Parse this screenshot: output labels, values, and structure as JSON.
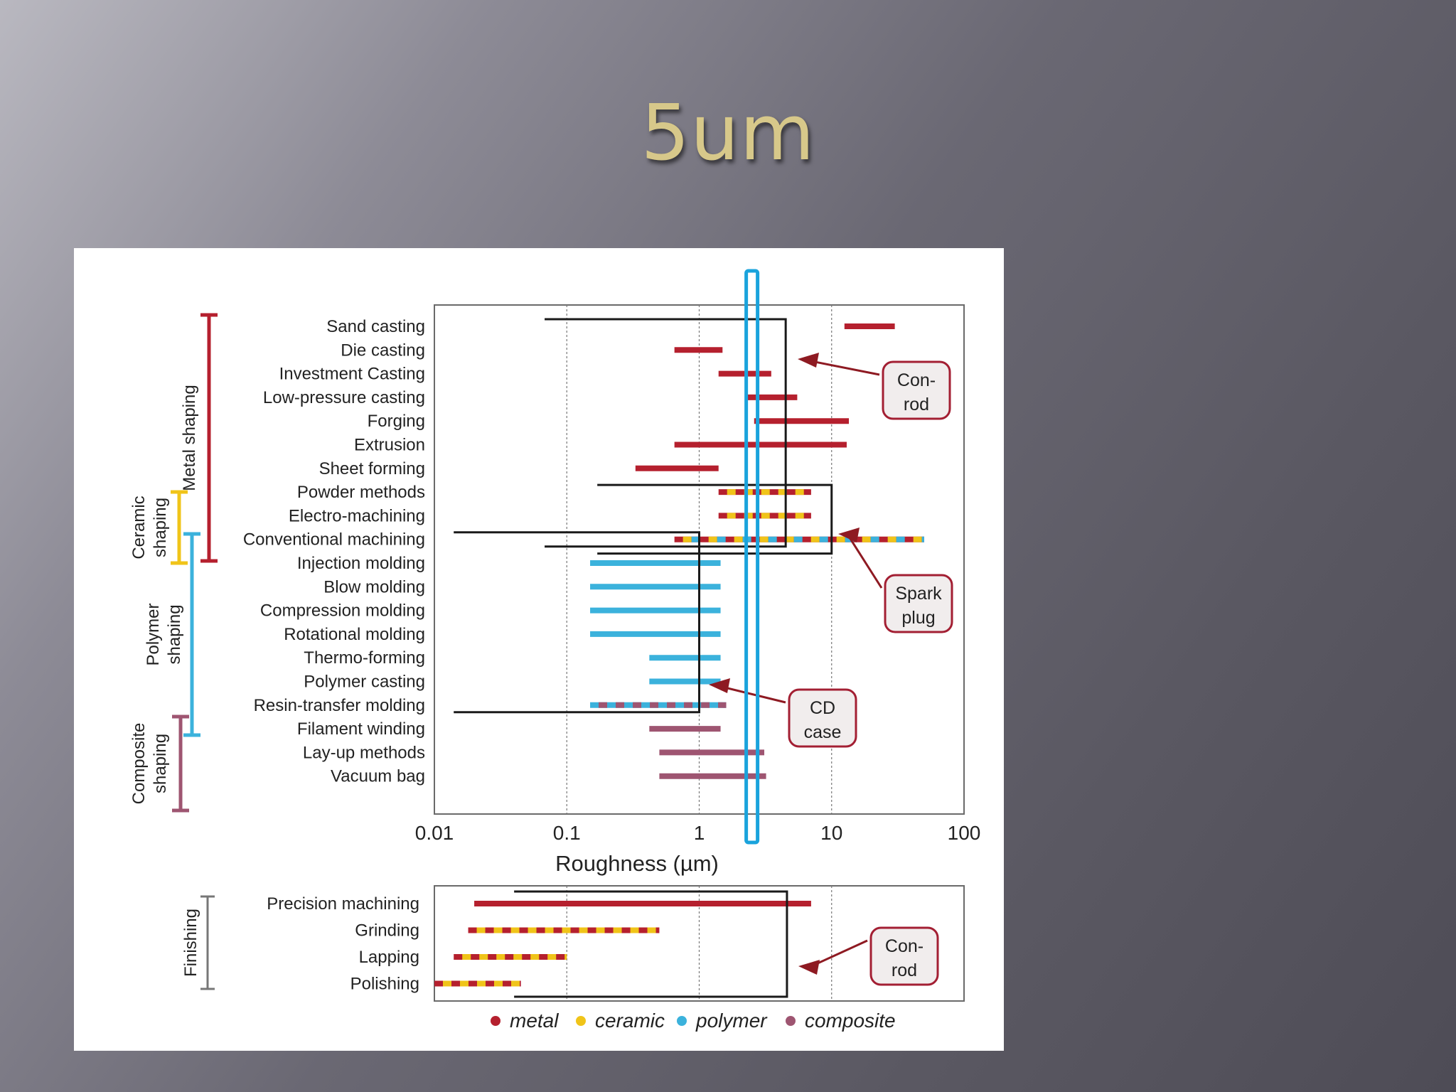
{
  "slide": {
    "title": "5um"
  },
  "colors": {
    "metal": "#b5202e",
    "ceramic": "#f0c419",
    "polymer": "#3bb2dc",
    "composite": "#9e5571",
    "highlight": "#1aa3dc",
    "frame": "#1a1a1a",
    "callout_fill": "#f1eded"
  },
  "chart_data": [
    {
      "type": "range-bar",
      "x_scale": "log",
      "xlim": [
        0.01,
        100
      ],
      "xticks": [
        "0.01",
        "0.1",
        "1",
        "10",
        "100"
      ],
      "xlabel": "Roughness (µm)",
      "grid": true,
      "groups": [
        {
          "label": "Metal shaping",
          "color": "metal"
        },
        {
          "label": "Ceramic shaping",
          "color": "ceramic"
        },
        {
          "label": "Polymer shaping",
          "color": "polymer"
        },
        {
          "label": "Composite shaping",
          "color": "composite"
        }
      ],
      "rows": [
        {
          "label": "Sand casting",
          "from": 12.5,
          "to": 30,
          "classes": [
            "metal"
          ]
        },
        {
          "label": "Die casting",
          "from": 0.65,
          "to": 1.5,
          "classes": [
            "metal"
          ]
        },
        {
          "label": "Investment Casting",
          "from": 1.4,
          "to": 3.5,
          "classes": [
            "metal"
          ]
        },
        {
          "label": "Low-pressure casting",
          "from": 2.3,
          "to": 5.5,
          "classes": [
            "metal"
          ]
        },
        {
          "label": "Forging",
          "from": 2.6,
          "to": 13.5,
          "classes": [
            "metal"
          ]
        },
        {
          "label": "Extrusion",
          "from": 0.65,
          "to": 13,
          "classes": [
            "metal"
          ]
        },
        {
          "label": "Sheet forming",
          "from": 0.33,
          "to": 1.4,
          "classes": [
            "metal"
          ]
        },
        {
          "label": "Powder methods",
          "from": 1.4,
          "to": 7,
          "classes": [
            "metal",
            "ceramic"
          ]
        },
        {
          "label": "Electro-machining",
          "from": 1.4,
          "to": 7,
          "classes": [
            "metal",
            "ceramic"
          ]
        },
        {
          "label": "Conventional machining",
          "from": 0.65,
          "to": 50,
          "classes": [
            "metal",
            "ceramic",
            "polymer"
          ]
        },
        {
          "label": "Injection molding",
          "from": 0.15,
          "to": 1.45,
          "classes": [
            "polymer"
          ]
        },
        {
          "label": "Blow molding",
          "from": 0.15,
          "to": 1.45,
          "classes": [
            "polymer"
          ]
        },
        {
          "label": "Compression molding",
          "from": 0.15,
          "to": 1.45,
          "classes": [
            "polymer"
          ]
        },
        {
          "label": "Rotational molding",
          "from": 0.15,
          "to": 1.45,
          "classes": [
            "polymer"
          ]
        },
        {
          "label": "Thermo-forming",
          "from": 0.42,
          "to": 1.45,
          "classes": [
            "polymer"
          ]
        },
        {
          "label": "Polymer casting",
          "from": 0.42,
          "to": 1.45,
          "classes": [
            "polymer"
          ]
        },
        {
          "label": "Resin-transfer molding",
          "from": 0.15,
          "to": 1.6,
          "classes": [
            "polymer",
            "composite"
          ]
        },
        {
          "label": "Filament winding",
          "from": 0.42,
          "to": 1.45,
          "classes": [
            "composite"
          ]
        },
        {
          "label": "Lay-up methods",
          "from": 0.5,
          "to": 3.1,
          "classes": [
            "composite"
          ]
        },
        {
          "label": "Vacuum bag",
          "from": 0.5,
          "to": 3.2,
          "classes": [
            "composite"
          ]
        }
      ],
      "callouts": [
        {
          "text": [
            "Con-",
            "rod"
          ],
          "points_to": "Investment Casting"
        },
        {
          "text": [
            "Spark",
            "plug"
          ],
          "points_to": "Conventional machining"
        },
        {
          "text": [
            "CD",
            "case"
          ],
          "points_to": "Thermo-forming"
        }
      ],
      "highlight_x": 2.5
    },
    {
      "type": "range-bar",
      "x_scale": "log",
      "xlim": [
        0.01,
        100
      ],
      "grid": true,
      "groups": [
        {
          "label": "Finishing",
          "color": "frame"
        }
      ],
      "rows": [
        {
          "label": "Precision machining",
          "from": 0.02,
          "to": 7,
          "classes": [
            "metal"
          ]
        },
        {
          "label": "Grinding",
          "from": 0.018,
          "to": 0.5,
          "classes": [
            "metal",
            "ceramic"
          ]
        },
        {
          "label": "Lapping",
          "from": 0.014,
          "to": 0.1,
          "classes": [
            "metal",
            "ceramic"
          ]
        },
        {
          "label": "Polishing",
          "from": 0.01,
          "to": 0.045,
          "classes": [
            "metal",
            "ceramic"
          ]
        }
      ],
      "callouts": [
        {
          "text": [
            "Con-",
            "rod"
          ],
          "points_to": "Lapping"
        }
      ],
      "legend": [
        {
          "label": "metal",
          "color": "metal"
        },
        {
          "label": "ceramic",
          "color": "ceramic"
        },
        {
          "label": "polymer",
          "color": "polymer"
        },
        {
          "label": "composite",
          "color": "composite"
        }
      ],
      "legend_position": "bottom"
    }
  ]
}
